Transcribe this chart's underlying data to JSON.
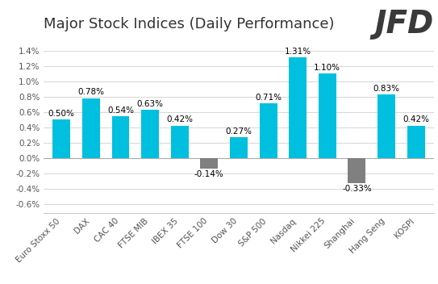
{
  "categories": [
    "Euro Stoxx 50",
    "DAX",
    "CAC 40",
    "FTSE MIB",
    "IBEX 35",
    "FTSE 100",
    "Dow 30",
    "S&P 500",
    "Nasdaq",
    "Nikkei 225",
    "Shanghai",
    "Hang Seng",
    "KOSPI"
  ],
  "values": [
    0.5,
    0.78,
    0.54,
    0.63,
    0.42,
    -0.14,
    0.27,
    0.71,
    1.31,
    1.1,
    -0.33,
    0.83,
    0.42
  ],
  "labels": [
    "0.50%",
    "0.78%",
    "0.54%",
    "0.63%",
    "0.42%",
    "-0.14%",
    "0.27%",
    "0.71%",
    "1.31%",
    "1.10%",
    "-0.33%",
    "0.83%",
    "0.42%"
  ],
  "positive_color": "#00BFDF",
  "negative_color": "#808080",
  "title": "Major Stock Indices (Daily Performance)",
  "title_fontsize": 13,
  "tick_fontsize": 7.5,
  "label_fontsize": 7.5,
  "ylim": [
    -0.72,
    1.58
  ],
  "yticks": [
    -0.6,
    -0.4,
    -0.2,
    0.0,
    0.2,
    0.4,
    0.6,
    0.8,
    1.0,
    1.2,
    1.4
  ],
  "background_color": "#ffffff",
  "grid_color": "#d0d0d0",
  "logo_text": "JFD",
  "logo_fontsize": 28,
  "logo_color": "#3a3a3a"
}
